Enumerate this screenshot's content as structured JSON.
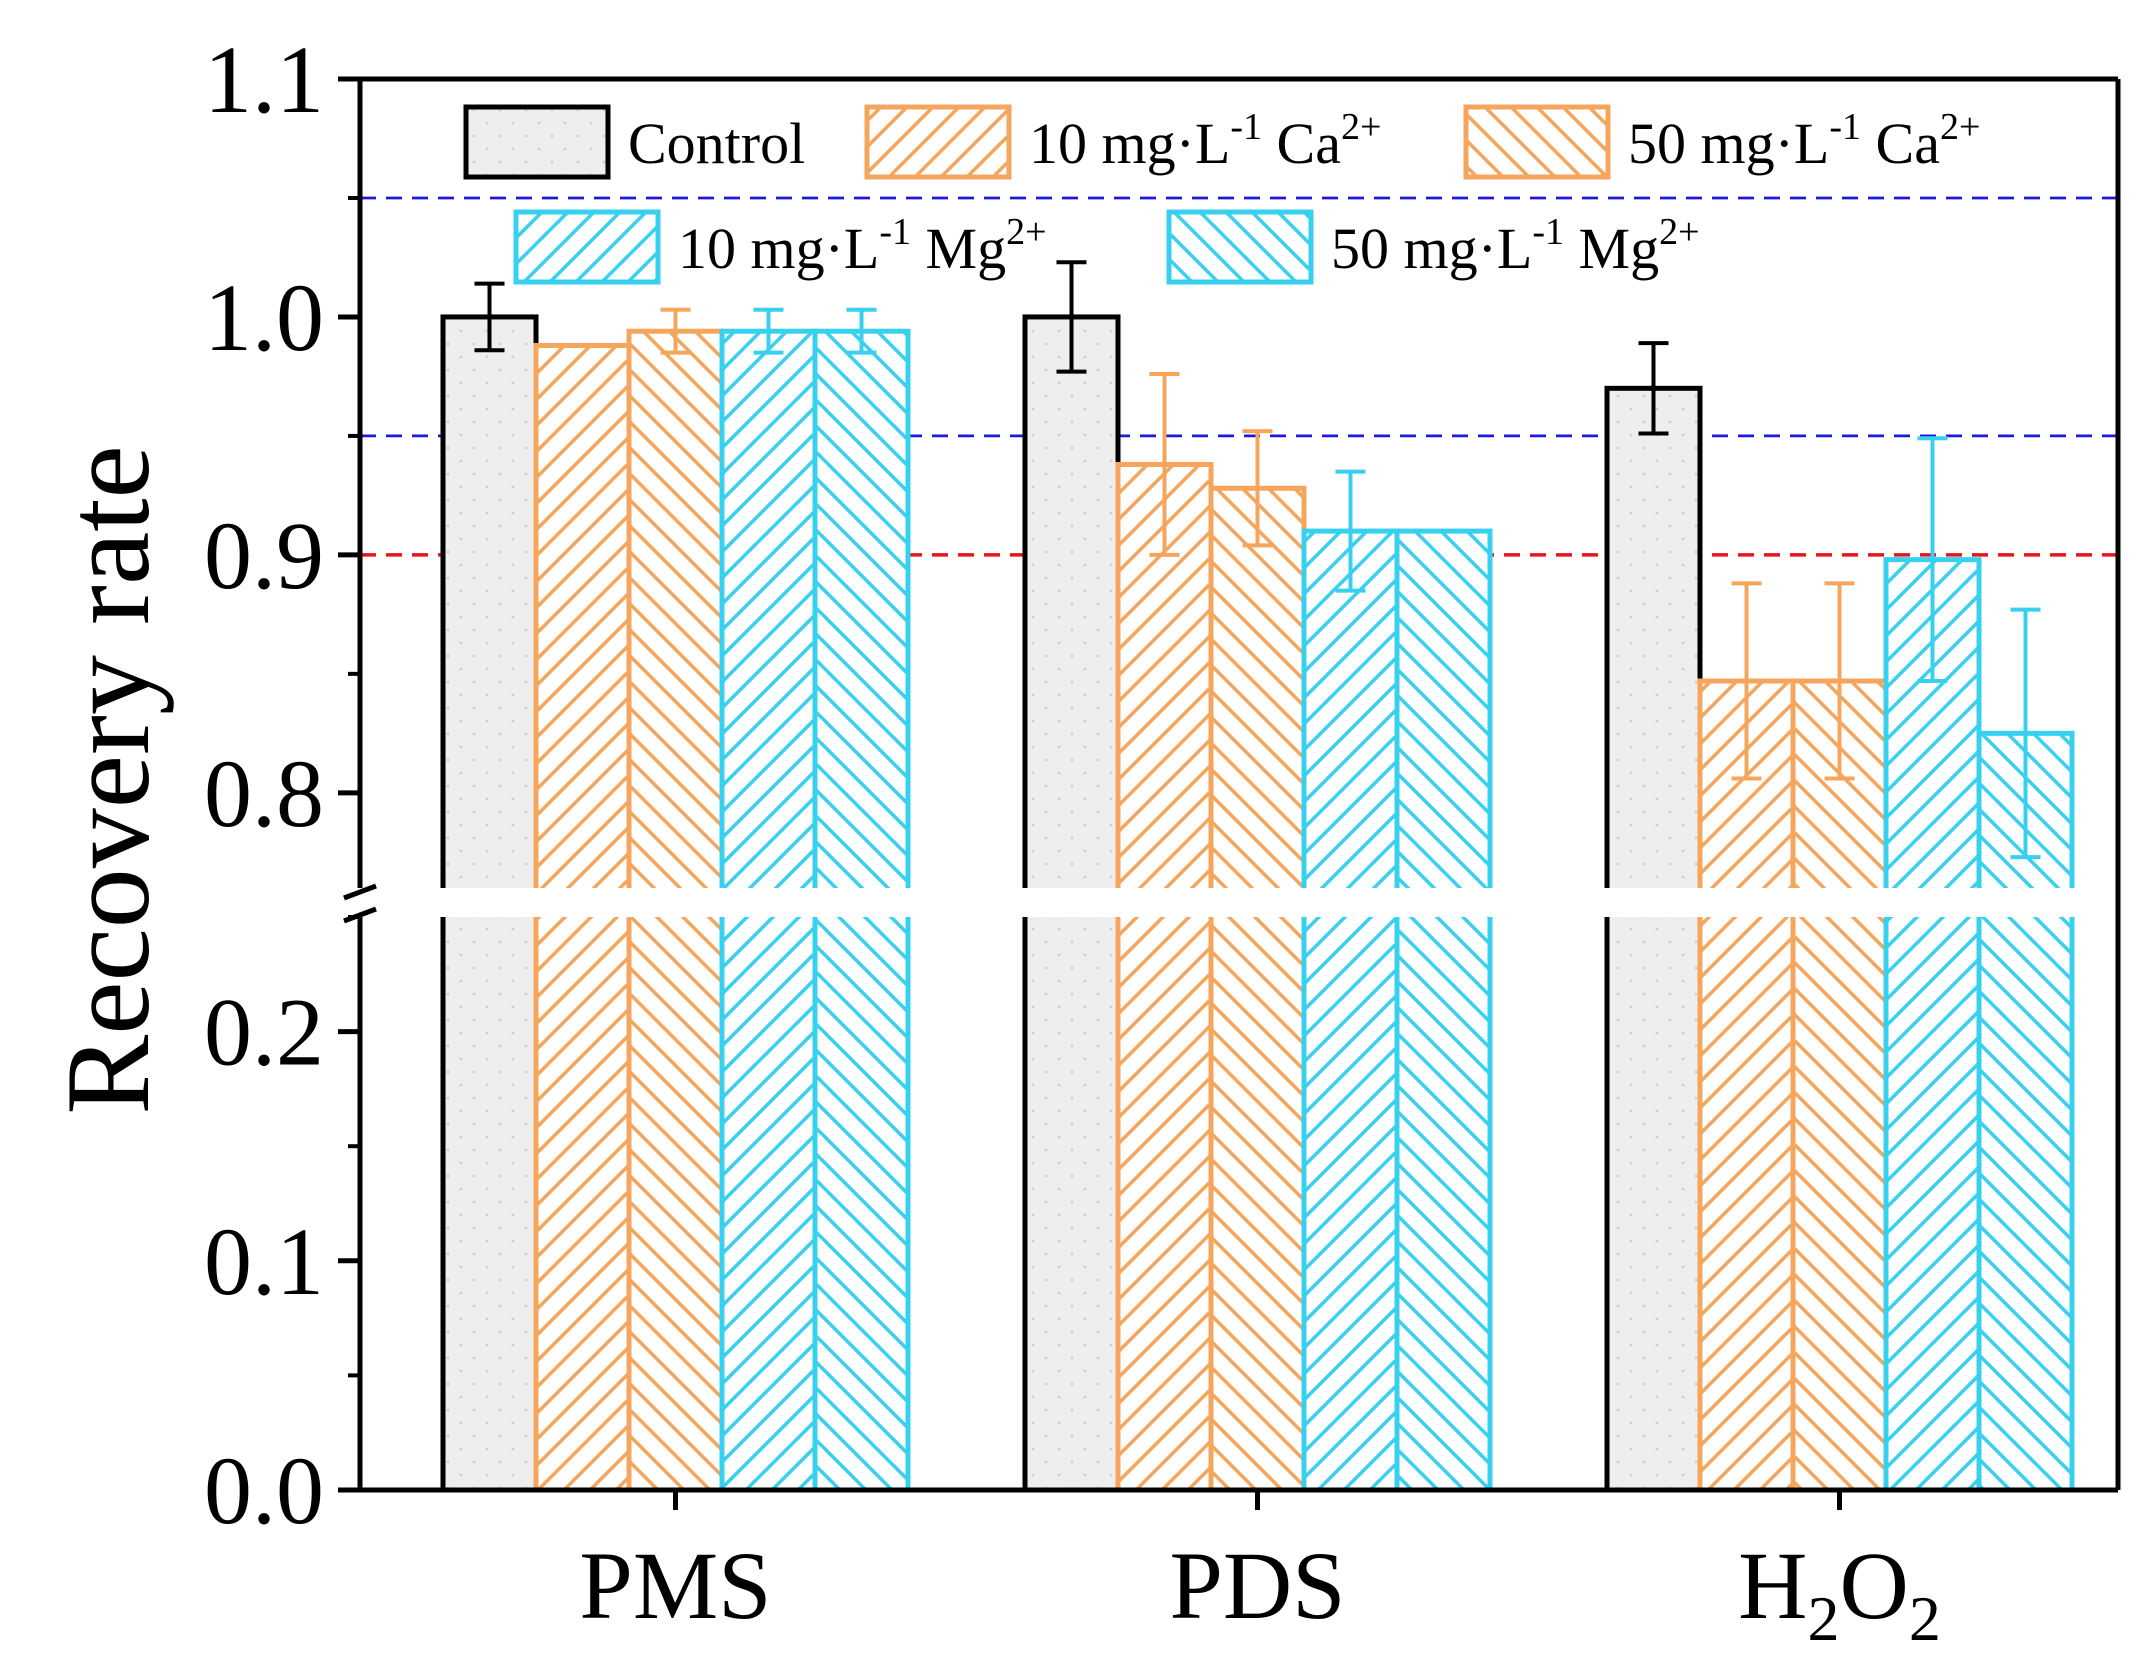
{
  "chart_data": {
    "type": "bar",
    "ylabel": "Recovery rate",
    "xlabel": "",
    "categories": [
      "PMS",
      "PDS",
      "H2O2"
    ],
    "category_labels": [
      {
        "parts": [
          {
            "t": "PMS"
          }
        ]
      },
      {
        "parts": [
          {
            "t": "PDS"
          }
        ]
      },
      {
        "parts": [
          {
            "t": "H"
          },
          {
            "t": "2",
            "sub": true
          },
          {
            "t": "O"
          },
          {
            "t": "2",
            "sub": true
          }
        ]
      }
    ],
    "broken_axis": {
      "lower_range": [
        0.0,
        0.25
      ],
      "upper_range": [
        0.76,
        1.1
      ],
      "lower_ticks": [
        "0.0",
        "0.1",
        "0.2"
      ],
      "upper_ticks": [
        "0.8",
        "0.9",
        "1.0",
        "1.1"
      ]
    },
    "series": [
      {
        "name": "Control",
        "color": "#000000",
        "fill": "#eeeeee",
        "pattern": "dots",
        "values": [
          1.0,
          1.0,
          0.97
        ],
        "errors": [
          0.014,
          0.023,
          0.019
        ]
      },
      {
        "name": "10 mg·L-1 Ca2+",
        "color": "#f5a55c",
        "fill": "none",
        "pattern": "forward",
        "values": [
          0.988,
          0.938,
          0.847
        ],
        "errors": [
          0.0,
          0.038,
          0.041
        ]
      },
      {
        "name": "50 mg·L-1 Ca2+",
        "color": "#f5a55c",
        "fill": "none",
        "pattern": "back",
        "values": [
          0.994,
          0.928,
          0.847
        ],
        "errors": [
          0.009,
          0.024,
          0.041
        ]
      },
      {
        "name": "10 mg·L-1 Mg2+",
        "color": "#37d0ef",
        "fill": "none",
        "pattern": "forward",
        "values": [
          0.994,
          0.91,
          0.898
        ],
        "errors": [
          0.009,
          0.025,
          0.051
        ]
      },
      {
        "name": "50 mg·L-1 Mg2+",
        "color": "#37d0ef",
        "fill": "none",
        "pattern": "back",
        "values": [
          0.994,
          0.91,
          0.825
        ],
        "errors": [
          0.009,
          0.0,
          0.052
        ]
      }
    ],
    "reference_lines": [
      {
        "value": 1.05,
        "color": "#1a1adb",
        "style": "dashed"
      },
      {
        "value": 0.95,
        "color": "#1a1adb",
        "style": "dashed"
      },
      {
        "value": 0.9,
        "color": "#e8141b",
        "style": "dashed"
      }
    ],
    "legend": {
      "placement": "top",
      "entries": [
        {
          "parts": [
            {
              "t": "Control"
            }
          ]
        },
        {
          "parts": [
            {
              "t": "10 mg·L"
            },
            {
              "t": "-1",
              "sup": true
            },
            {
              "t": " Ca"
            },
            {
              "t": "2+",
              "sup": true
            }
          ]
        },
        {
          "parts": [
            {
              "t": "50 mg·L"
            },
            {
              "t": "-1",
              "sup": true
            },
            {
              "t": " Ca"
            },
            {
              "t": "2+",
              "sup": true
            }
          ]
        },
        {
          "parts": [
            {
              "t": "10 mg·L"
            },
            {
              "t": "-1",
              "sup": true
            },
            {
              "t": " Mg"
            },
            {
              "t": "2+",
              "sup": true
            }
          ]
        },
        {
          "parts": [
            {
              "t": "50 mg·L"
            },
            {
              "t": "-1",
              "sup": true
            },
            {
              "t": " Mg"
            },
            {
              "t": "2+",
              "sup": true
            }
          ]
        }
      ]
    }
  }
}
